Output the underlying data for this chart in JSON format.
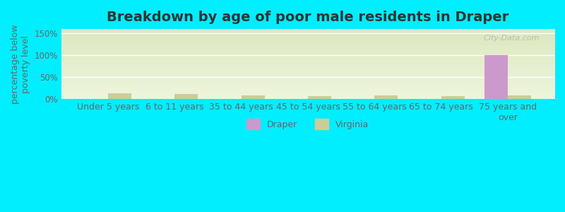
{
  "title": "Breakdown by age of poor male residents in Draper",
  "ylabel": "percentage below\npoverty level",
  "categories": [
    "Under 5 years",
    "6 to 11 years",
    "35 to 44 years",
    "45 to 54 years",
    "55 to 64 years",
    "65 to 74 years",
    "75 years and\nover"
  ],
  "draper_values": [
    0,
    0,
    0,
    0,
    0,
    0,
    100
  ],
  "virginia_values": [
    13,
    11,
    8,
    6,
    9,
    7,
    8
  ],
  "draper_color": "#cc99cc",
  "virginia_color": "#cccc99",
  "background_color": "#e8f0d8",
  "plot_bg_color_top": "#f0f5e0",
  "plot_bg_color_bottom": "#d8e8c8",
  "ylim": [
    0,
    160
  ],
  "yticks": [
    0,
    50,
    100,
    150
  ],
  "ytick_labels": [
    "0%",
    "50%",
    "100%",
    "150%"
  ],
  "grid_color": "#ffffff",
  "outer_bg_color": "#00eeff",
  "bar_width": 0.35,
  "title_fontsize": 14,
  "label_fontsize": 9,
  "tick_fontsize": 8.5,
  "watermark": "City-Data.com"
}
